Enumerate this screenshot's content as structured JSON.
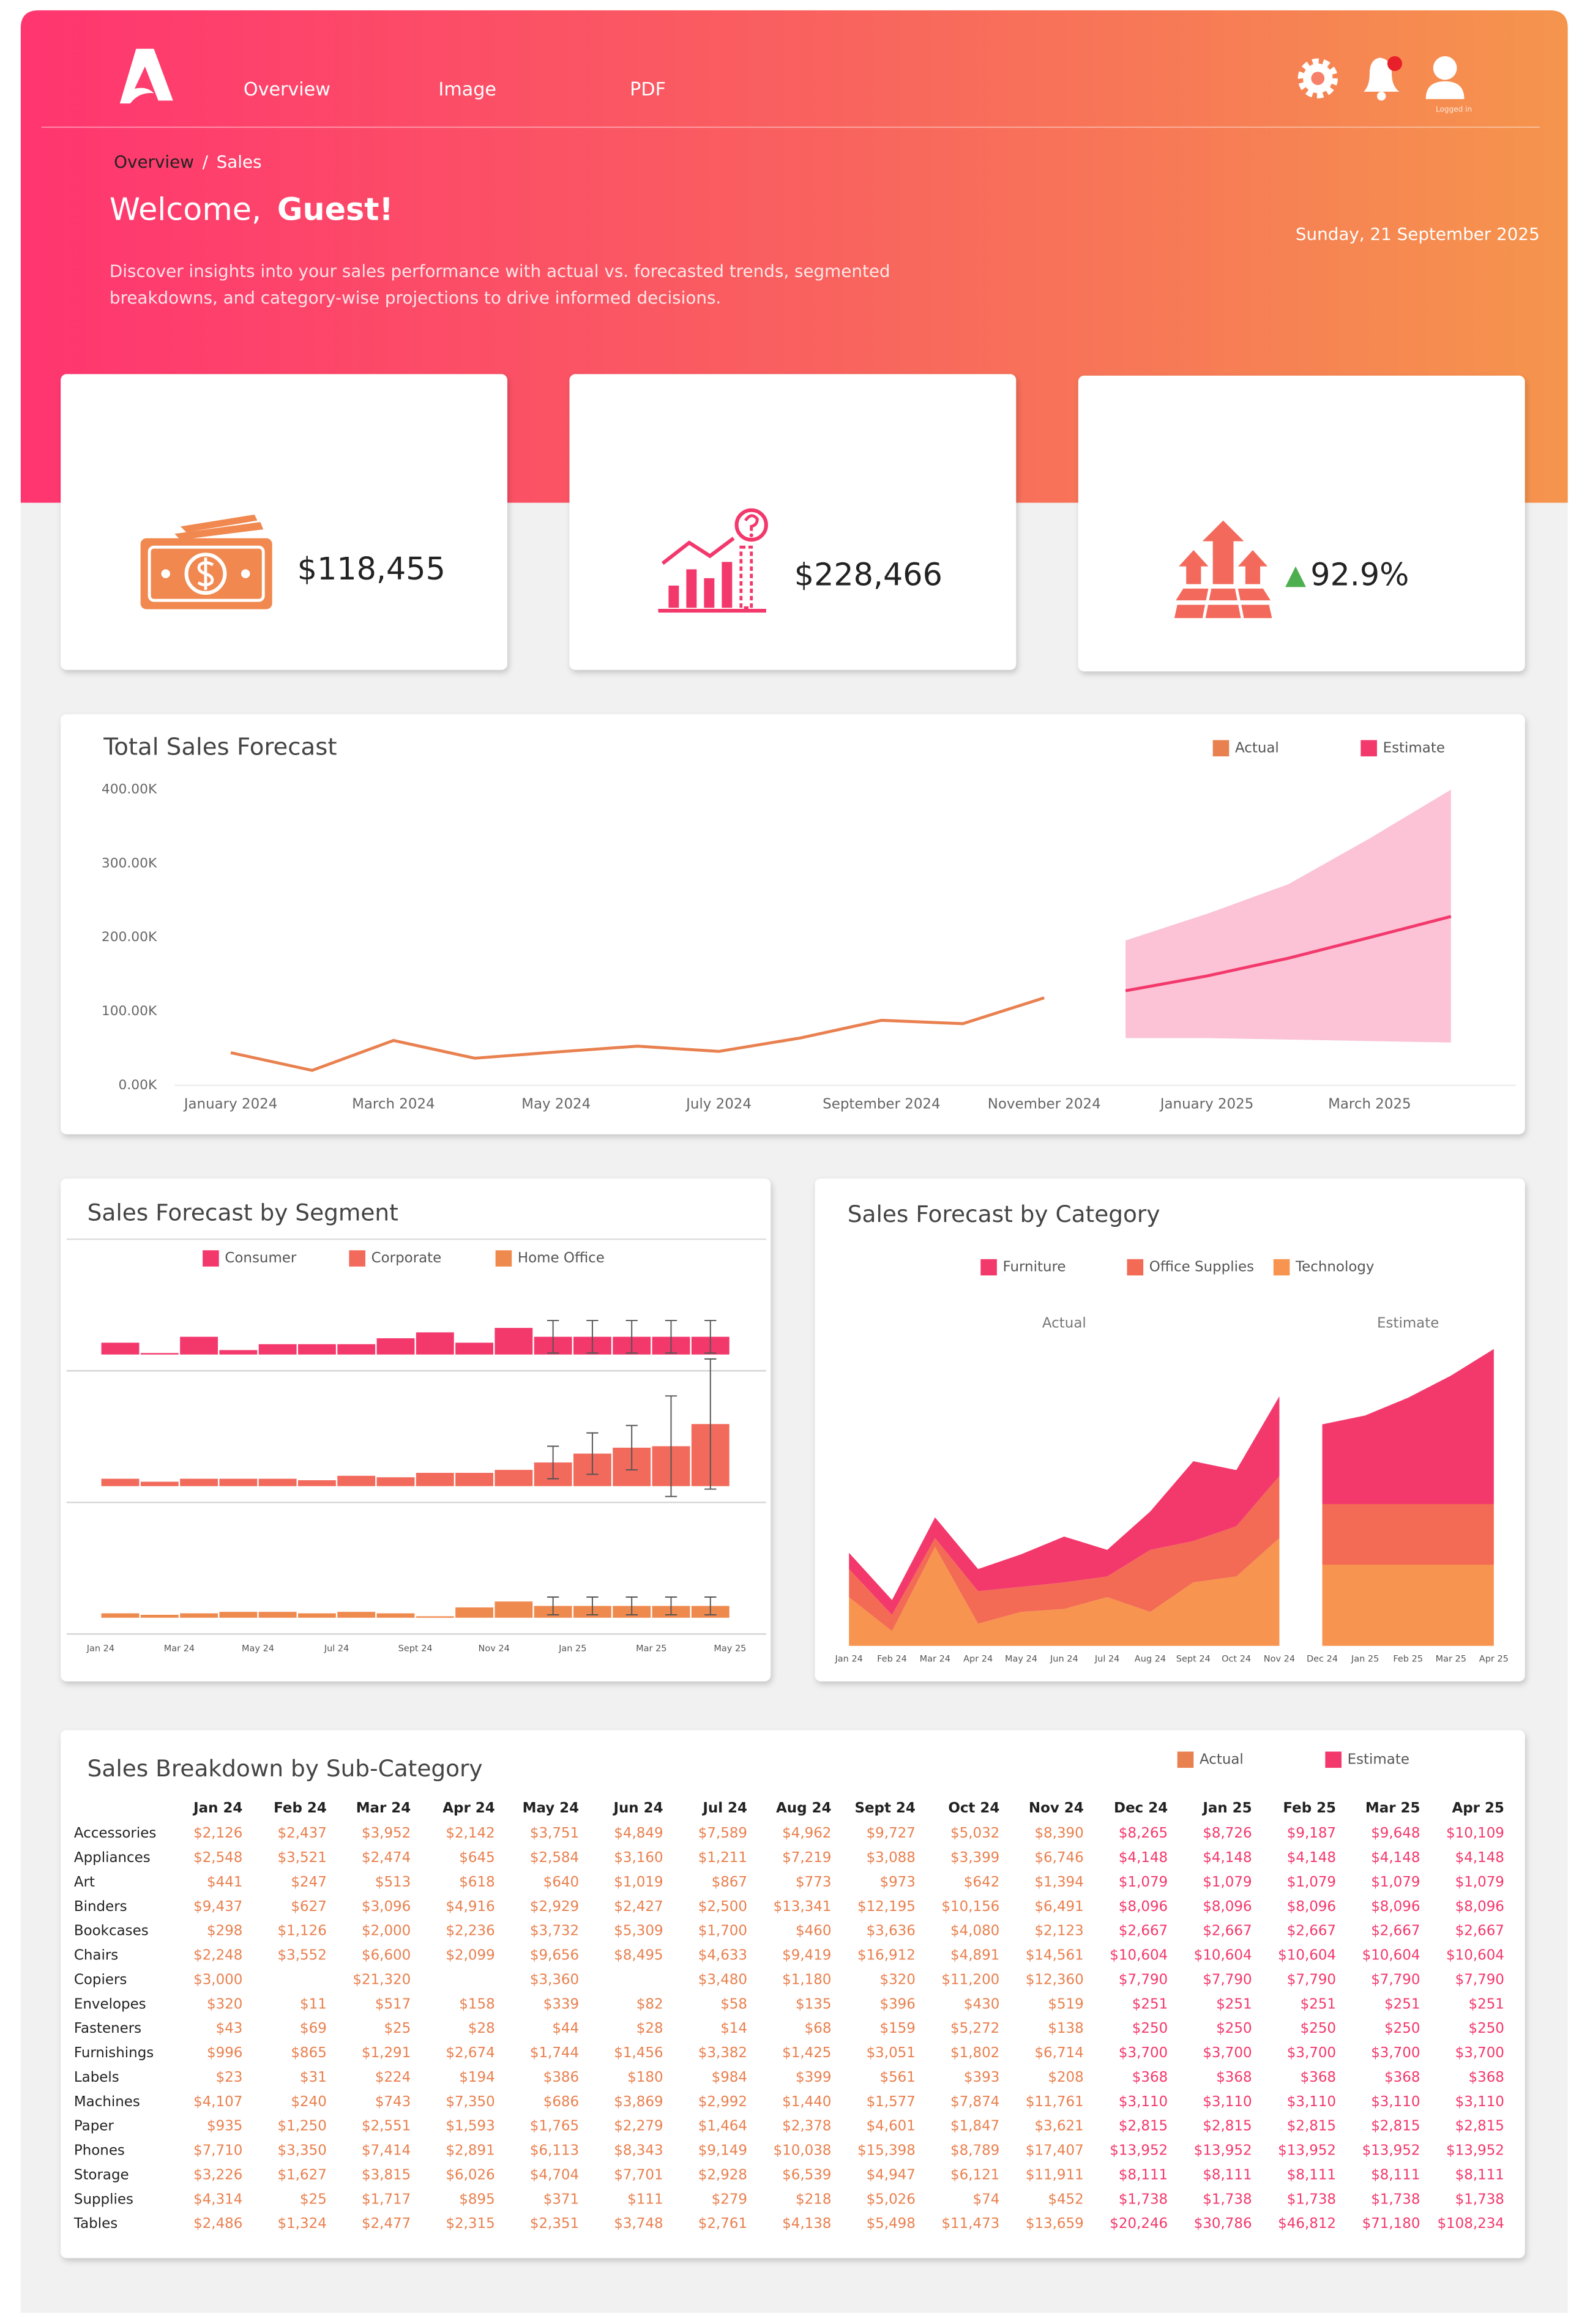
{
  "header": {
    "nav": [
      "Overview",
      "Image",
      "PDF"
    ],
    "status": "Logged in",
    "breadcrumb": {
      "parent": "Overview",
      "separator": "/",
      "current": "Sales"
    },
    "greeting": "Welcome,",
    "user": "Guest!",
    "description": [
      "Discover insights into your sales performance with actual vs. forecasted trends, segmented",
      "breakdowns, and category-wise projections to drive informed decisions."
    ],
    "date": "Sunday, 21 September 2025"
  },
  "kpis": [
    "$118,455",
    "$228,466",
    "92.9%"
  ],
  "chart_data": [
    {
      "type": "line",
      "title": "Total Sales Forecast",
      "categories": [
        "January 2024",
        null,
        "March 2024",
        null,
        "May 2024",
        null,
        "July 2024",
        null,
        "September 2024",
        null,
        "November 2024",
        null,
        "January 2025",
        null,
        "March 2025",
        null
      ],
      "ylim": [
        0,
        400000
      ],
      "yticks": [
        {
          "value": 0,
          "label": "0.00K"
        },
        {
          "value": 100000,
          "label": "100.00K"
        },
        {
          "value": 200000,
          "label": "200.00K"
        },
        {
          "value": 300000,
          "label": "300.00K"
        },
        {
          "value": 400000,
          "label": "400.00K"
        }
      ],
      "grid": false,
      "legend": "top-right",
      "series": [
        {
          "name": "Actual",
          "color": "#e9804f",
          "values": [
            44258,
            20302,
            60729,
            36780,
            45155,
            53056,
            45991,
            64132,
            88065,
            83475,
            118455,
            null,
            null,
            null,
            null,
            null
          ]
        },
        {
          "name": "Estimate",
          "color": "#f3386c",
          "values": [
            null,
            null,
            null,
            null,
            null,
            null,
            null,
            null,
            null,
            null,
            null,
            128000,
            148000,
            172000,
            200000,
            228466
          ],
          "band": {
            "color": "#fbc3d5",
            "lower": [
              null,
              null,
              null,
              null,
              null,
              null,
              null,
              null,
              null,
              null,
              null,
              64000,
              64000,
              62000,
              60000,
              58000
            ],
            "upper": [
              null,
              null,
              null,
              null,
              null,
              null,
              null,
              null,
              null,
              null,
              null,
              196000,
              232000,
              272000,
              334000,
              400000
            ]
          }
        }
      ]
    },
    {
      "type": "bar",
      "title": "Sales Forecast by Segment",
      "xticks": [
        "Jan 24",
        "Mar 24",
        "May 24",
        "Jul 24",
        "Sept 24",
        "Nov 24",
        "Jan 25",
        "Mar 25",
        "May 25"
      ],
      "ylim": [
        0,
        240000
      ],
      "legend": "top-left",
      "series": [
        {
          "name": "Consumer",
          "color": "#f3386c",
          "values": [
            24000,
            3000,
            36000,
            9000,
            21000,
            21000,
            21000,
            33000,
            45000,
            24000,
            54000,
            36000,
            36000,
            36000,
            36000,
            36000
          ],
          "errors": [
            null,
            null,
            null,
            null,
            null,
            null,
            null,
            null,
            null,
            null,
            null,
            33000,
            33000,
            33000,
            33000,
            33000
          ]
        },
        {
          "name": "Corporate",
          "color": "#f26a5c",
          "values": [
            15000,
            9000,
            15000,
            15000,
            15000,
            12000,
            21000,
            18000,
            27000,
            27000,
            33000,
            48000,
            66000,
            78000,
            81000,
            126000
          ],
          "errors": [
            null,
            null,
            null,
            null,
            null,
            null,
            null,
            null,
            null,
            null,
            null,
            33000,
            42000,
            45000,
            102000,
            132000
          ]
        },
        {
          "name": "Home Office",
          "color": "#ef8a4f",
          "values": [
            9000,
            6000,
            9000,
            12000,
            12000,
            9000,
            12000,
            9000,
            3000,
            21000,
            33000,
            24000,
            24000,
            24000,
            24000,
            24000
          ],
          "errors": [
            null,
            null,
            null,
            null,
            null,
            null,
            null,
            null,
            null,
            null,
            null,
            18000,
            18000,
            18000,
            18000,
            18000
          ]
        }
      ]
    },
    {
      "type": "area",
      "title": "Sales Forecast by Category",
      "stacked": true,
      "ylim": [
        0,
        150000
      ],
      "legend": "top-center",
      "panels": [
        {
          "title": "Actual",
          "categories": [
            "Jan 24",
            "Feb 24",
            "Mar 24",
            "Apr 24",
            "May 24",
            "Jun 24",
            "Jul 24",
            "Aug 24",
            "Sept 24",
            "Oct 24",
            "Nov 24"
          ]
        },
        {
          "title": "Estimate",
          "categories": [
            "Dec 24",
            "Jan 25",
            "Feb 25",
            "Mar 25",
            "Apr 25"
          ]
        }
      ],
      "series": [
        {
          "name": "Furniture",
          "color": "#f3386c",
          "values": [
            7700,
            7000,
            9800,
            10500,
            15400,
            21700,
            12600,
            18200,
            37800,
            26600,
            37800,
            37800,
            42000,
            50400,
            60900,
            73500
          ]
        },
        {
          "name": "Office Supplies",
          "color": "#f36a55",
          "values": [
            13300,
            7700,
            4200,
            15400,
            11900,
            12600,
            9800,
            29400,
            19600,
            23800,
            29400,
            28700,
            28700,
            28700,
            28700,
            28700
          ]
        },
        {
          "name": "Technology",
          "color": "#f7944f",
          "values": [
            23100,
            7000,
            46900,
            10500,
            16100,
            17500,
            23100,
            16100,
            30100,
            32900,
            51100,
            38500,
            38500,
            38500,
            38500,
            38500
          ]
        }
      ]
    }
  ],
  "table": {
    "title": "Sales Breakdown by Sub-Category",
    "legend": [
      {
        "name": "Actual",
        "color": "#e9804f"
      },
      {
        "name": "Estimate",
        "color": "#f3386c"
      }
    ],
    "columns": [
      "Jan 24",
      "Feb 24",
      "Mar 24",
      "Apr 24",
      "May 24",
      "Jun 24",
      "Jul 24",
      "Aug 24",
      "Sept 24",
      "Oct 24",
      "Nov 24",
      "Dec 24",
      "Jan 25",
      "Feb 25",
      "Mar 25",
      "Apr 25"
    ],
    "column_colors": [
      "#e9804f",
      "#e9804f",
      "#e9804f",
      "#e9804f",
      "#e9804f",
      "#e9804f",
      "#e9804f",
      "#e9804f",
      "#e9804f",
      "#e9804f",
      "#e9804f",
      "#f3386c",
      "#f3386c",
      "#f3386c",
      "#f3386c",
      "#f3386c"
    ],
    "rows": [
      {
        "name": "Accessories",
        "cells": [
          "$2,126",
          "$2,437",
          "$3,952",
          "$2,142",
          "$3,751",
          "$4,849",
          "$7,589",
          "$4,962",
          "$9,727",
          "$5,032",
          "$8,390",
          "$8,265",
          "$8,726",
          "$9,187",
          "$9,648",
          "$10,109"
        ]
      },
      {
        "name": "Appliances",
        "cells": [
          "$2,548",
          "$3,521",
          "$2,474",
          "$645",
          "$2,584",
          "$3,160",
          "$1,211",
          "$7,219",
          "$3,088",
          "$3,399",
          "$6,746",
          "$4,148",
          "$4,148",
          "$4,148",
          "$4,148",
          "$4,148"
        ]
      },
      {
        "name": "Art",
        "cells": [
          "$441",
          "$247",
          "$513",
          "$618",
          "$640",
          "$1,019",
          "$867",
          "$773",
          "$973",
          "$642",
          "$1,394",
          "$1,079",
          "$1,079",
          "$1,079",
          "$1,079",
          "$1,079"
        ]
      },
      {
        "name": "Binders",
        "cells": [
          "$9,437",
          "$627",
          "$3,096",
          "$4,916",
          "$2,929",
          "$2,427",
          "$2,500",
          "$13,341",
          "$12,195",
          "$10,156",
          "$6,491",
          "$8,096",
          "$8,096",
          "$8,096",
          "$8,096",
          "$8,096"
        ]
      },
      {
        "name": "Bookcases",
        "cells": [
          "$298",
          "$1,126",
          "$2,000",
          "$2,236",
          "$3,732",
          "$5,309",
          "$1,700",
          "$460",
          "$3,636",
          "$4,080",
          "$2,123",
          "$2,667",
          "$2,667",
          "$2,667",
          "$2,667",
          "$2,667"
        ]
      },
      {
        "name": "Chairs",
        "cells": [
          "$2,248",
          "$3,552",
          "$6,600",
          "$2,099",
          "$9,656",
          "$8,495",
          "$4,633",
          "$9,419",
          "$16,912",
          "$4,891",
          "$14,561",
          "$10,604",
          "$10,604",
          "$10,604",
          "$10,604",
          "$10,604"
        ]
      },
      {
        "name": "Copiers",
        "cells": [
          "$3,000",
          null,
          "$21,320",
          null,
          "$3,360",
          null,
          "$3,480",
          "$1,180",
          "$320",
          "$11,200",
          "$12,360",
          "$7,790",
          "$7,790",
          "$7,790",
          "$7,790",
          "$7,790"
        ]
      },
      {
        "name": "Envelopes",
        "cells": [
          "$320",
          "$11",
          "$517",
          "$158",
          "$339",
          "$82",
          "$58",
          "$135",
          "$396",
          "$430",
          "$519",
          "$251",
          "$251",
          "$251",
          "$251",
          "$251"
        ]
      },
      {
        "name": "Fasteners",
        "cells": [
          "$43",
          "$69",
          "$25",
          "$28",
          "$44",
          "$28",
          "$14",
          "$68",
          "$159",
          "$5,272",
          "$138",
          "$250",
          "$250",
          "$250",
          "$250",
          "$250"
        ]
      },
      {
        "name": "Furnishings",
        "cells": [
          "$996",
          "$865",
          "$1,291",
          "$2,674",
          "$1,744",
          "$1,456",
          "$3,382",
          "$1,425",
          "$3,051",
          "$1,802",
          "$6,714",
          "$3,700",
          "$3,700",
          "$3,700",
          "$3,700",
          "$3,700"
        ]
      },
      {
        "name": "Labels",
        "cells": [
          "$23",
          "$31",
          "$224",
          "$194",
          "$386",
          "$180",
          "$984",
          "$399",
          "$561",
          "$393",
          "$208",
          "$368",
          "$368",
          "$368",
          "$368",
          "$368"
        ]
      },
      {
        "name": "Machines",
        "cells": [
          "$4,107",
          "$240",
          "$743",
          "$7,350",
          "$686",
          "$3,869",
          "$2,992",
          "$1,440",
          "$1,577",
          "$7,874",
          "$11,761",
          "$3,110",
          "$3,110",
          "$3,110",
          "$3,110",
          "$3,110"
        ]
      },
      {
        "name": "Paper",
        "cells": [
          "$935",
          "$1,250",
          "$2,551",
          "$1,593",
          "$1,765",
          "$2,279",
          "$1,464",
          "$2,378",
          "$4,601",
          "$1,847",
          "$3,621",
          "$2,815",
          "$2,815",
          "$2,815",
          "$2,815",
          "$2,815"
        ]
      },
      {
        "name": "Phones",
        "cells": [
          "$7,710",
          "$3,350",
          "$7,414",
          "$2,891",
          "$6,113",
          "$8,343",
          "$9,149",
          "$10,038",
          "$15,398",
          "$8,789",
          "$17,407",
          "$13,952",
          "$13,952",
          "$13,952",
          "$13,952",
          "$13,952"
        ]
      },
      {
        "name": "Storage",
        "cells": [
          "$3,226",
          "$1,627",
          "$3,815",
          "$6,026",
          "$4,704",
          "$7,701",
          "$2,928",
          "$6,539",
          "$4,947",
          "$6,121",
          "$11,911",
          "$8,111",
          "$8,111",
          "$8,111",
          "$8,111",
          "$8,111"
        ]
      },
      {
        "name": "Supplies",
        "cells": [
          "$4,314",
          "$25",
          "$1,717",
          "$895",
          "$371",
          "$111",
          "$279",
          "$218",
          "$5,026",
          "$74",
          "$452",
          "$1,738",
          "$1,738",
          "$1,738",
          "$1,738",
          "$1,738"
        ]
      },
      {
        "name": "Tables",
        "cells": [
          "$2,486",
          "$1,324",
          "$2,477",
          "$2,315",
          "$2,351",
          "$3,748",
          "$2,761",
          "$4,138",
          "$5,498",
          "$11,473",
          "$13,659",
          "$20,246",
          "$30,786",
          "$46,812",
          "$71,180",
          "$108,234"
        ]
      }
    ]
  }
}
